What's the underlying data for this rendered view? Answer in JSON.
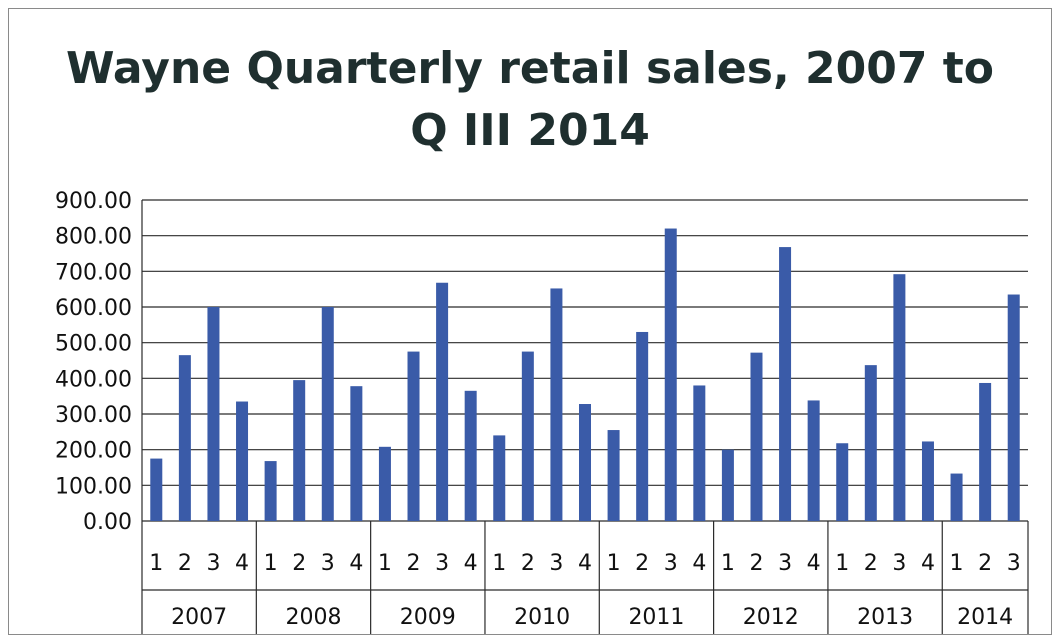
{
  "chart_data": {
    "type": "bar",
    "title_lines": [
      "Wayne Quarterly retail sales, 2007 to",
      "Q III 2014"
    ],
    "xlabel": "",
    "ylabel": "",
    "ylim": [
      0,
      900
    ],
    "y_ticks": [
      "0.00",
      "100.00",
      "200.00",
      "300.00",
      "400.00",
      "500.00",
      "600.00",
      "700.00",
      "800.00",
      "900.00"
    ],
    "grid": "horizontal",
    "legend": "none",
    "bar_color": "#3a5ba8",
    "groups": [
      {
        "label": "2007",
        "quarters": [
          "1",
          "2",
          "3",
          "4"
        ],
        "values": [
          175,
          465,
          600,
          335
        ]
      },
      {
        "label": "2008",
        "quarters": [
          "1",
          "2",
          "3",
          "4"
        ],
        "values": [
          168,
          395,
          600,
          378
        ]
      },
      {
        "label": "2009",
        "quarters": [
          "1",
          "2",
          "3",
          "4"
        ],
        "values": [
          208,
          475,
          668,
          365
        ]
      },
      {
        "label": "2010",
        "quarters": [
          "1",
          "2",
          "3",
          "4"
        ],
        "values": [
          240,
          475,
          652,
          328
        ]
      },
      {
        "label": "2011",
        "quarters": [
          "1",
          "2",
          "3",
          "4"
        ],
        "values": [
          255,
          530,
          820,
          380
        ]
      },
      {
        "label": "2012",
        "quarters": [
          "1",
          "2",
          "3",
          "4"
        ],
        "values": [
          200,
          472,
          768,
          338
        ]
      },
      {
        "label": "2013",
        "quarters": [
          "1",
          "2",
          "3",
          "4"
        ],
        "values": [
          218,
          437,
          692,
          223
        ]
      },
      {
        "label": "2014",
        "quarters": [
          "1",
          "2",
          "3"
        ],
        "values": [
          133,
          387,
          635
        ]
      }
    ]
  }
}
